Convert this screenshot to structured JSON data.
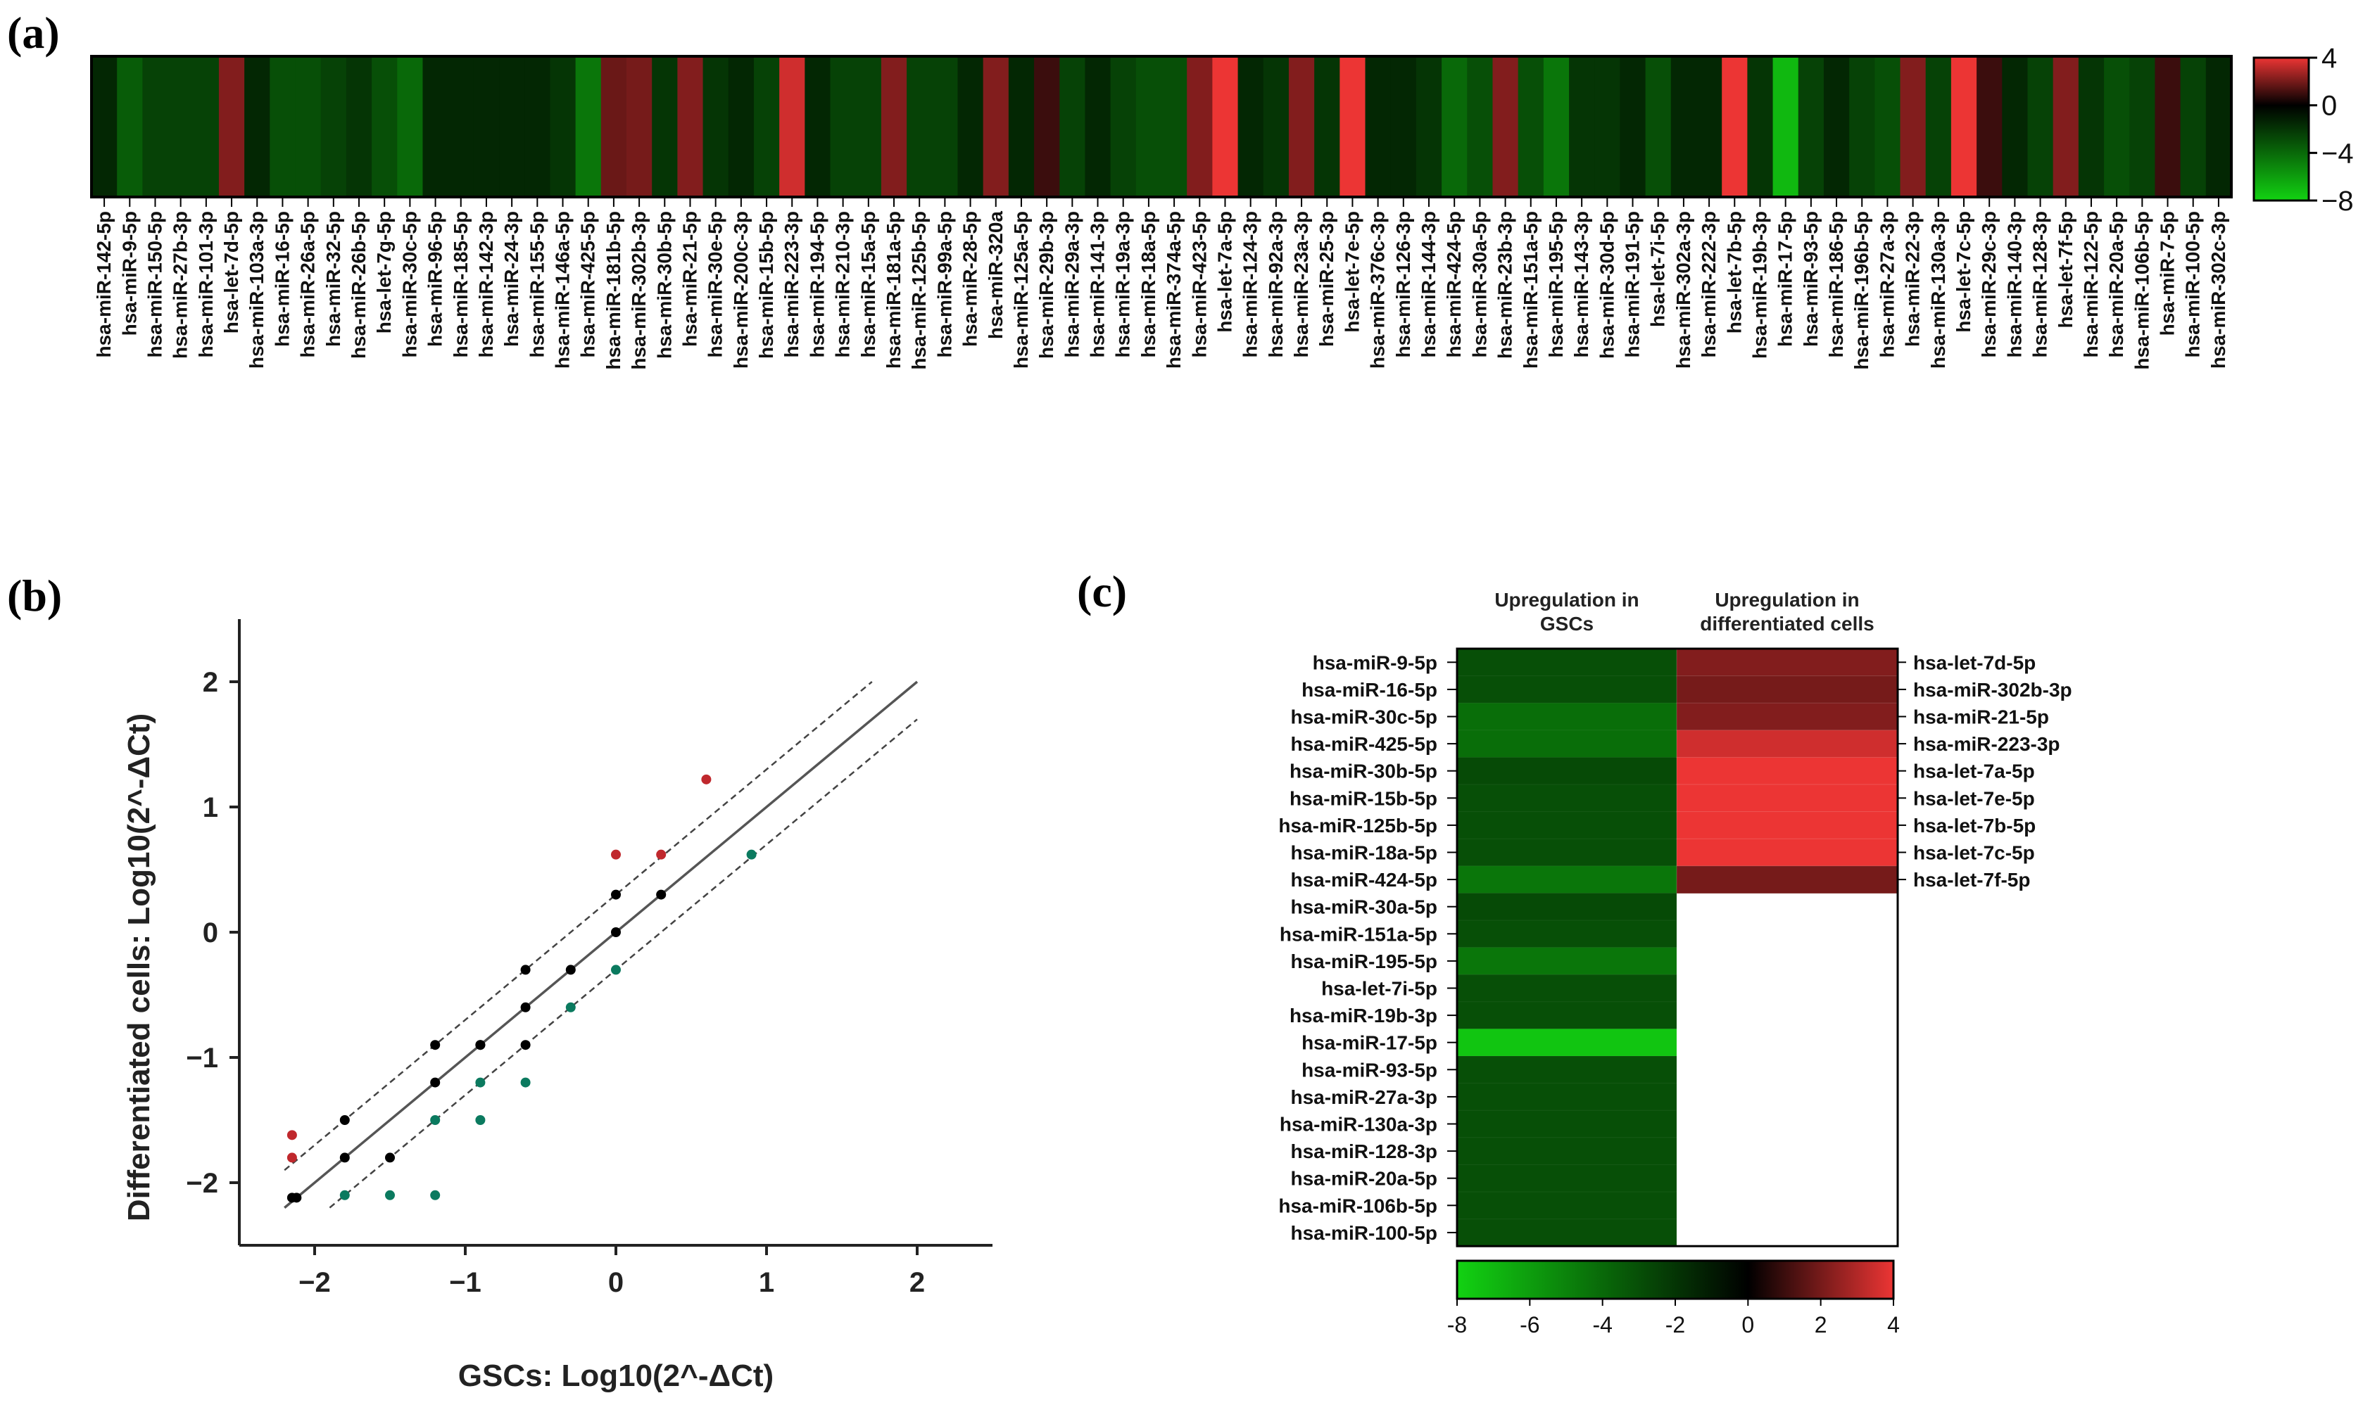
{
  "panels": {
    "a": {
      "label": "(a)",
      "chart_data": {
        "type": "heatmap",
        "title": "",
        "labels": [
          "hsa-miR-142-5p",
          "hsa-miR-9-5p",
          "hsa-miR-150-5p",
          "hsa-miR-27b-3p",
          "hsa-miR-101-3p",
          "hsa-let-7d-5p",
          "hsa-miR-103a-3p",
          "hsa-miR-16-5p",
          "hsa-miR-26a-5p",
          "hsa-miR-32-5p",
          "hsa-miR-26b-5p",
          "hsa-let-7g-5p",
          "hsa-miR-30c-5p",
          "hsa-miR-96-5p",
          "hsa-miR-185-5p",
          "hsa-miR-142-3p",
          "hsa-miR-24-3p",
          "hsa-miR-155-5p",
          "hsa-miR-146a-5p",
          "hsa-miR-425-5p",
          "hsa-miR-181b-5p",
          "hsa-miR-302b-3p",
          "hsa-miR-30b-5p",
          "hsa-miR-21-5p",
          "hsa-miR-30e-5p",
          "hsa-miR-200c-3p",
          "hsa-miR-15b-5p",
          "hsa-miR-223-3p",
          "hsa-miR-194-5p",
          "hsa-miR-210-3p",
          "hsa-miR-15a-5p",
          "hsa-miR-181a-5p",
          "hsa-miR-125b-5p",
          "hsa-miR-99a-5p",
          "hsa-miR-28-5p",
          "hsa-miR-320a",
          "hsa-miR-125a-5p",
          "hsa-miR-29b-3p",
          "hsa-miR-29a-3p",
          "hsa-miR-141-3p",
          "hsa-miR-19a-3p",
          "hsa-miR-18a-5p",
          "hsa-miR-374a-5p",
          "hsa-miR-423-5p",
          "hsa-let-7a-5p",
          "hsa-miR-124-3p",
          "hsa-miR-92a-3p",
          "hsa-miR-23a-3p",
          "hsa-miR-25-3p",
          "hsa-let-7e-5p",
          "hsa-miR-376c-3p",
          "hsa-miR-126-3p",
          "hsa-miR-144-3p",
          "hsa-miR-424-5p",
          "hsa-miR-30a-5p",
          "hsa-miR-23b-3p",
          "hsa-miR-151a-5p",
          "hsa-miR-195-5p",
          "hsa-miR-143-3p",
          "hsa-miR-30d-5p",
          "hsa-miR-191-5p",
          "hsa-let-7i-5p",
          "hsa-miR-302a-3p",
          "hsa-miR-222-3p",
          "hsa-let-7b-5p",
          "hsa-miR-19b-3p",
          "hsa-miR-17-5p",
          "hsa-miR-93-5p",
          "hsa-miR-186-5p",
          "hsa-miR-196b-5p",
          "hsa-miR-27a-3p",
          "hsa-miR-22-3p",
          "hsa-miR-130a-3p",
          "hsa-let-7c-5p",
          "hsa-miR-29c-3p",
          "hsa-miR-140-3p",
          "hsa-miR-128-3p",
          "hsa-let-7f-5p",
          "hsa-miR-122-5p",
          "hsa-miR-20a-5p",
          "hsa-miR-106b-5p",
          "hsa-miR-7-5p",
          "hsa-miR-100-5p",
          "hsa-miR-302c-3p"
        ],
        "values": [
          -1.5,
          -3.5,
          -2.5,
          -2.5,
          -2.5,
          2.2,
          -1.5,
          -3.0,
          -3.0,
          -2.5,
          -2.0,
          -3.0,
          -4.0,
          -1.5,
          -1.5,
          -1.5,
          -1.5,
          -1.5,
          -2.0,
          -4.5,
          1.8,
          2.0,
          -2.0,
          2.2,
          -2.0,
          -1.5,
          -2.5,
          3.5,
          -1.5,
          -2.5,
          -2.5,
          2.2,
          -2.5,
          -2.5,
          -1.5,
          2.2,
          -1.5,
          1.0,
          -2.5,
          -1.5,
          -2.5,
          -3.0,
          -3.0,
          2.2,
          4.2,
          -1.5,
          -2.0,
          2.2,
          -2.0,
          4.2,
          -1.5,
          -1.5,
          -2.0,
          -4.0,
          -3.0,
          2.2,
          -3.0,
          -4.5,
          -2.0,
          -2.0,
          -1.5,
          -3.0,
          -1.5,
          -1.5,
          4.2,
          -2.0,
          -7.0,
          -2.5,
          -1.5,
          -2.5,
          -3.0,
          2.2,
          -2.5,
          4.2,
          1.0,
          -1.5,
          -2.5,
          2.2,
          -2.0,
          -3.0,
          -2.5,
          1.0,
          -2.5,
          -1.5
        ],
        "colorbar": {
          "min": -8,
          "max": 4,
          "ticks": [
            "4",
            "0",
            "−4",
            "−8"
          ]
        }
      }
    },
    "b": {
      "label": "(b)",
      "chart_data": {
        "type": "scatter",
        "xlabel": "GSCs: Log10(2^-ΔCt)",
        "ylabel": "Differentiated cells: Log10(2^-ΔCt)",
        "xlim": [
          -2.5,
          2.5
        ],
        "ylim": [
          -2.5,
          2.5
        ],
        "xticks": [
          {
            "v": -2,
            "t": "−2"
          },
          {
            "v": -1,
            "t": "−1"
          },
          {
            "v": 0,
            "t": "0"
          },
          {
            "v": 1,
            "t": "1"
          },
          {
            "v": 2,
            "t": "2"
          }
        ],
        "yticks": [
          {
            "v": 2,
            "t": "2"
          },
          {
            "v": 1,
            "t": "1"
          },
          {
            "v": 0,
            "t": "0"
          },
          {
            "v": -1,
            "t": "−1"
          },
          {
            "v": -2,
            "t": "−2"
          }
        ],
        "lines": [
          {
            "name": "identity",
            "offset": 0,
            "style": "solid",
            "x": [
              -2.2,
              2.0
            ]
          },
          {
            "name": "upper-threshold",
            "offset": 0.3,
            "style": "dashed",
            "x": [
              -2.2,
              1.7
            ]
          },
          {
            "name": "lower-threshold",
            "offset": -0.3,
            "style": "dashed",
            "x": [
              -1.9,
              2.0
            ]
          }
        ],
        "series": [
          {
            "name": "unchanged",
            "color": "#000000",
            "x": [
              -2.15,
              -2.12,
              -1.8,
              -1.8,
              -1.5,
              -1.2,
              -1.2,
              -0.9,
              -0.9,
              -0.6,
              -0.6,
              -0.6,
              -0.3,
              0.0,
              0.0,
              0.3
            ],
            "y": [
              -2.12,
              -2.12,
              -1.5,
              -1.8,
              -1.8,
              -0.9,
              -1.2,
              -0.9,
              -0.9,
              -0.3,
              -0.6,
              -0.9,
              -0.3,
              0.3,
              0.0,
              0.3
            ]
          },
          {
            "name": "up-in-differentiated",
            "color": "#c0282d",
            "x": [
              -2.15,
              -2.15,
              0.0,
              0.3,
              0.6
            ],
            "y": [
              -1.62,
              -1.8,
              0.62,
              0.62,
              1.22
            ]
          },
          {
            "name": "up-in-GSCs",
            "color": "#0b7a5f",
            "x": [
              -1.8,
              -1.5,
              -1.2,
              -1.2,
              -0.9,
              -0.9,
              -0.6,
              -0.3,
              0.0,
              0.9
            ],
            "y": [
              -2.1,
              -2.1,
              -2.1,
              -1.5,
              -1.2,
              -1.5,
              -1.2,
              -0.6,
              -0.3,
              0.62
            ]
          }
        ]
      }
    },
    "c": {
      "label": "(c)",
      "chart_data": {
        "type": "heatmap",
        "columns": [
          "Upregulation in GSCs",
          "Upregulation in differentiated cells"
        ],
        "col_header_lines": [
          [
            "Upregulation in",
            "GSCs"
          ],
          [
            "Upregulation in",
            "differentiated cells"
          ]
        ],
        "gsc_labels": [
          "hsa-miR-9-5p",
          "hsa-miR-16-5p",
          "hsa-miR-30c-5p",
          "hsa-miR-425-5p",
          "hsa-miR-30b-5p",
          "hsa-miR-15b-5p",
          "hsa-miR-125b-5p",
          "hsa-miR-18a-5p",
          "hsa-miR-424-5p",
          "hsa-miR-30a-5p",
          "hsa-miR-151a-5p",
          "hsa-miR-195-5p",
          "hsa-let-7i-5p",
          "hsa-miR-19b-3p",
          "hsa-miR-17-5p",
          "hsa-miR-93-5p",
          "hsa-miR-27a-3p",
          "hsa-miR-130a-3p",
          "hsa-miR-128-3p",
          "hsa-miR-20a-5p",
          "hsa-miR-106b-5p",
          "hsa-miR-100-5p"
        ],
        "gsc_values": [
          -3.0,
          -3.0,
          -4.2,
          -4.2,
          -2.8,
          -3.0,
          -3.0,
          -3.0,
          -4.5,
          -2.8,
          -3.0,
          -4.5,
          -3.0,
          -3.0,
          -7.5,
          -3.0,
          -3.0,
          -3.0,
          -3.0,
          -3.0,
          -3.0,
          -3.0
        ],
        "diff_labels": [
          "hsa-let-7d-5p",
          "hsa-miR-302b-3p",
          "hsa-miR-21-5p",
          "hsa-miR-223-3p",
          "hsa-let-7a-5p",
          "hsa-let-7e-5p",
          "hsa-let-7b-5p",
          "hsa-let-7c-5p",
          "hsa-let-7f-5p"
        ],
        "diff_values": [
          2.2,
          2.0,
          2.2,
          3.5,
          4.2,
          4.2,
          4.2,
          4.2,
          2.0
        ],
        "colorbar": {
          "min": -8,
          "max": 4,
          "ticks": [
            "-8",
            "-6",
            "-4",
            "-2",
            "0",
            "2",
            "4"
          ]
        }
      }
    }
  }
}
